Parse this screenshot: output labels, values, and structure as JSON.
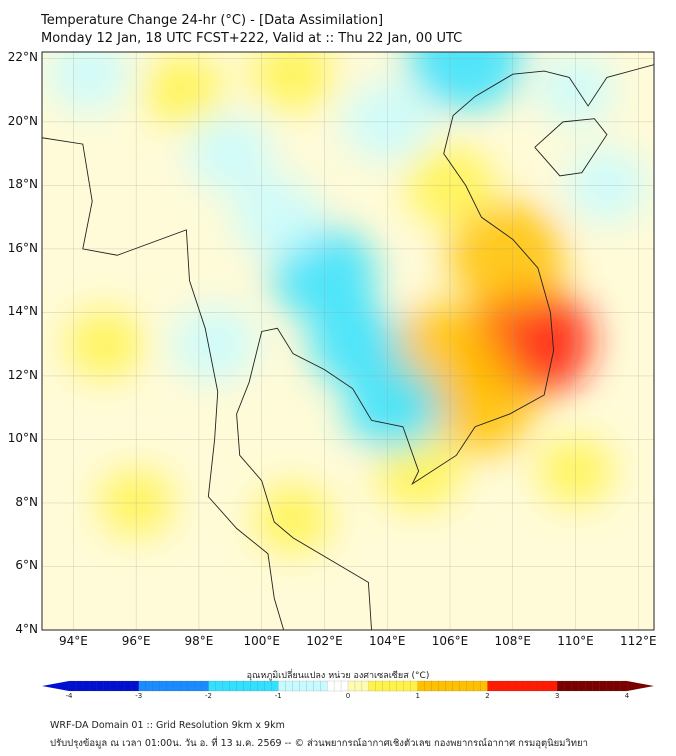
{
  "header": {
    "title_line1": "Temperature Change 24-hr (°C) - [Data Assimilation]",
    "title_line2": "Monday 12 Jan, 18 UTC FCST+222, Valid at :: Thu 22 Jan, 00 UTC"
  },
  "chart_data": {
    "type": "heatmap",
    "title": "Temperature Change 24-hr (°C)",
    "lon_range": [
      93,
      112.5
    ],
    "lat_range": [
      4,
      22.2
    ],
    "lat_ticks": [
      "4°N",
      "6°N",
      "8°N",
      "10°N",
      "12°N",
      "14°N",
      "16°N",
      "18°N",
      "20°N",
      "22°N"
    ],
    "lat_values": [
      4,
      6,
      8,
      10,
      12,
      14,
      16,
      18,
      20,
      22
    ],
    "lon_ticks": [
      "94°E",
      "96°E",
      "98°E",
      "100°E",
      "102°E",
      "104°E",
      "106°E",
      "108°E",
      "110°E",
      "112°E"
    ],
    "lon_values": [
      94,
      96,
      98,
      100,
      102,
      104,
      106,
      108,
      110,
      112
    ],
    "features": [
      {
        "lon": 108.5,
        "lat": 13.1,
        "value": 2.4
      },
      {
        "lon": 105.8,
        "lat": 12.6,
        "value": 2.0
      },
      {
        "lon": 107.8,
        "lat": 15.8,
        "value": 2.0
      },
      {
        "lon": 107,
        "lat": 11,
        "value": 1.5
      },
      {
        "lon": 106,
        "lat": 18,
        "value": 1.0
      },
      {
        "lon": 105,
        "lat": 9,
        "value": 0.9
      },
      {
        "lon": 97.5,
        "lat": 21,
        "value": 0.7
      },
      {
        "lon": 101,
        "lat": 21.5,
        "value": 0.8
      },
      {
        "lon": 95,
        "lat": 13,
        "value": 0.6
      },
      {
        "lon": 101,
        "lat": 7.5,
        "value": 0.6
      },
      {
        "lon": 110,
        "lat": 9,
        "value": 0.5
      },
      {
        "lon": 96,
        "lat": 8,
        "value": 0.5
      },
      {
        "lon": 102,
        "lat": 15.2,
        "value": -1.6
      },
      {
        "lon": 103,
        "lat": 13,
        "value": -1.2
      },
      {
        "lon": 104.2,
        "lat": 11,
        "value": -1.3
      },
      {
        "lon": 100.5,
        "lat": 17,
        "value": -1.0
      },
      {
        "lon": 99,
        "lat": 19,
        "value": -0.9
      },
      {
        "lon": 106.5,
        "lat": 22,
        "value": -2.0
      },
      {
        "lon": 94.5,
        "lat": 21.5,
        "value": -0.8
      },
      {
        "lon": 104,
        "lat": 20,
        "value": -1.0
      },
      {
        "lon": 111,
        "lat": 18,
        "value": -0.8
      },
      {
        "lon": 98.5,
        "lat": 13,
        "value": -0.9
      },
      {
        "lon": 110,
        "lat": 21,
        "value": -0.6
      }
    ],
    "colorbar": {
      "label": "อุณหภูมิเปลี่ยนแปลง หน่วย องศาเซลเซียส (°C)",
      "range": [
        -4,
        4
      ],
      "ticks": [
        "-4",
        "-3",
        "-2",
        "-1",
        "0",
        "1",
        "2",
        "3",
        "4"
      ],
      "tick_values": [
        -4,
        -3,
        -2,
        -1,
        0,
        1,
        2,
        3,
        4
      ]
    }
  },
  "footer": {
    "line1": "WRF-DA Domain 01 :: Grid Resolution 9km x 9km",
    "line2": "ปรับปรุงข้อมูล ณ เวลา 01:00น. วัน อ. ที่ 13 ม.ค. 2569 -- © ส่วนพยากรณ์อากาศเชิงตัวเลข กองพยากรณ์อากาศ กรมอุตุนิยมวิทยา"
  }
}
